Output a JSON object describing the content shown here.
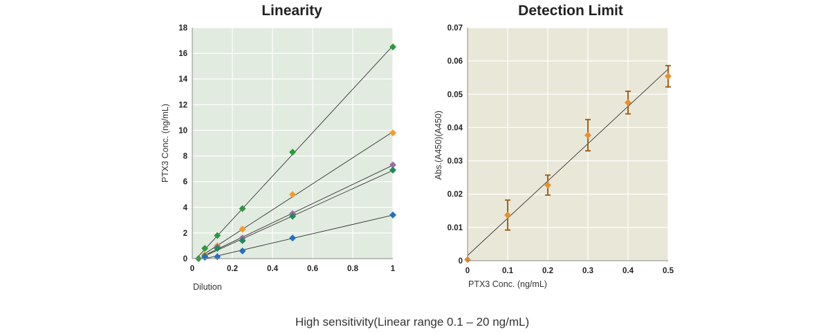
{
  "caption": "High sensitivity(Linear range 0.1 – 20 ng/mL)",
  "chart_data": [
    {
      "type": "scatter",
      "title": "Linearity",
      "xlabel": "Dilution",
      "ylabel": "PTX3 Conc. (ng/mL)",
      "xlim": [
        0,
        1
      ],
      "ylim": [
        0,
        18
      ],
      "xticks": [
        0,
        0.2,
        0.4,
        0.6,
        0.8,
        1
      ],
      "xtick_labels": [
        "0",
        "0.2",
        "0.4",
        "0.6",
        "0.8",
        "1"
      ],
      "yticks": [
        0,
        2,
        4,
        6,
        8,
        10,
        12,
        14,
        16,
        18
      ],
      "ytick_labels": [
        "0",
        "2",
        "4",
        "6",
        "8",
        "10",
        "12",
        "14",
        "16",
        "18"
      ],
      "background": "#e2ebe0",
      "grid": true,
      "trendlines": true,
      "series": [
        {
          "color": "#2a9a3c",
          "x": [
            0.03125,
            0.0625,
            0.125,
            0.25,
            0.5,
            1
          ],
          "y": [
            0,
            0.8,
            1.8,
            3.9,
            8.3,
            16.5
          ]
        },
        {
          "color": "#f39c2a",
          "x": [
            0.0625,
            0.125,
            0.25,
            0.5,
            1
          ],
          "y": [
            0.3,
            1.0,
            2.3,
            5.0,
            9.8
          ]
        },
        {
          "color": "#9b6aa8",
          "x": [
            0.0625,
            0.125,
            0.25,
            0.5,
            1
          ],
          "y": [
            0.2,
            0.9,
            1.6,
            3.5,
            7.3
          ]
        },
        {
          "color": "#1f8a5a",
          "x": [
            0.0625,
            0.125,
            0.25,
            0.5,
            1
          ],
          "y": [
            0.2,
            0.8,
            1.4,
            3.3,
            6.9
          ]
        },
        {
          "color": "#2470c0",
          "x": [
            0.0625,
            0.125,
            0.25,
            0.5,
            1
          ],
          "y": [
            0.1,
            0.15,
            0.6,
            1.6,
            3.4
          ]
        }
      ]
    },
    {
      "type": "scatter",
      "title": "Detection Limit",
      "xlabel": "PTX3 Conc. (ng/mL)",
      "ylabel": "Abs.(A450)(A450)",
      "xlim": [
        0,
        0.5
      ],
      "ylim": [
        0,
        0.07
      ],
      "xticks": [
        0,
        0.1,
        0.2,
        0.3,
        0.4,
        0.5
      ],
      "xtick_labels": [
        "0",
        "0.1",
        "0.2",
        "0.3",
        "0.4",
        "0.5"
      ],
      "yticks": [
        0,
        0.01,
        0.02,
        0.03,
        0.04,
        0.05,
        0.06,
        0.07
      ],
      "ytick_labels": [
        "0",
        "0.01",
        "0.02",
        "0.03",
        "0.04",
        "0.05",
        "0.06",
        "0.07"
      ],
      "background": "#e9e8d8",
      "grid": true,
      "trendline": true,
      "series": [
        {
          "color": "#e8902c",
          "errorbar_color": "#a0601a",
          "x": [
            0,
            0.1,
            0.2,
            0.3,
            0.4,
            0.5
          ],
          "y": [
            0.0003,
            0.0137,
            0.0227,
            0.0377,
            0.0475,
            0.0554
          ],
          "err": [
            0,
            0.0045,
            0.003,
            0.0047,
            0.0034,
            0.0032
          ]
        }
      ]
    }
  ]
}
